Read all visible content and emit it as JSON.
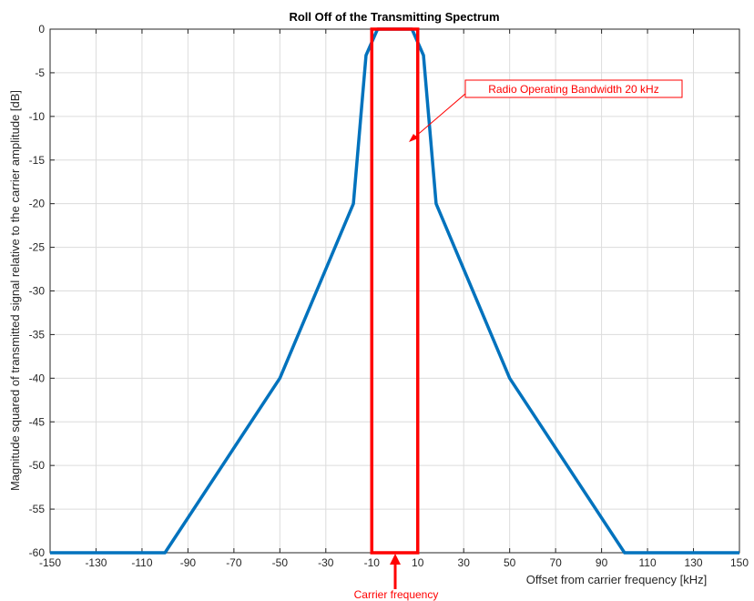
{
  "chart_data": {
    "type": "line",
    "title": "Roll Off of the Transmitting Spectrum",
    "xlabel": "Offset from carrier frequency [kHz]",
    "ylabel": "Magnitude squared of transmitted signal relative to the carrier amplitude [dB]",
    "xlim": [
      -150,
      150
    ],
    "ylim": [
      -60,
      0
    ],
    "xticks": [
      -150,
      -130,
      -110,
      -90,
      -70,
      -50,
      -30,
      -10,
      10,
      30,
      50,
      70,
      90,
      110,
      130,
      150
    ],
    "yticks": [
      0,
      -5,
      -10,
      -15,
      -20,
      -25,
      -30,
      -35,
      -40,
      -45,
      -50,
      -55,
      -60
    ],
    "grid": true,
    "series": [
      {
        "color": "#0072BD",
        "x": [
          -150,
          -100,
          -50,
          -18,
          -12.5,
          -7.5,
          7.5,
          12.5,
          18,
          50,
          100,
          150
        ],
        "y": [
          -60,
          -60,
          -40,
          -20,
          -3,
          0,
          0,
          -3,
          -20,
          -40,
          -60,
          -60
        ]
      }
    ],
    "bandwidth_box": {
      "x": [
        -10,
        10
      ],
      "y": [
        -60,
        0
      ],
      "color": "#ff0000"
    },
    "annotations": {
      "bandwidth_label": "Radio Operating Bandwidth 20 kHz",
      "carrier_label": "Carrier frequency",
      "color": "#ff0000"
    }
  }
}
